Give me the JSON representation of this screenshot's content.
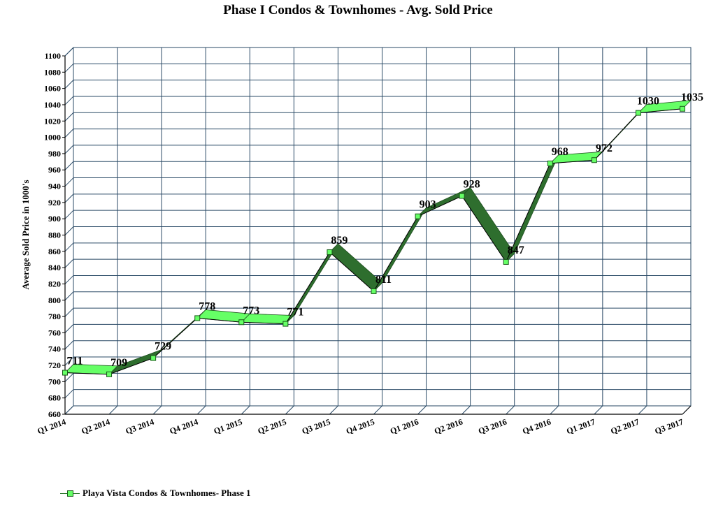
{
  "chart_data": {
    "type": "line",
    "title": "Phase I Condos & Townhomes - Avg. Sold Price",
    "ylabel": "Average Sold Price in 1000's",
    "xlabel": "",
    "categories": [
      "Q1 2014",
      "Q2 2014",
      "Q3 2014",
      "Q4 2014",
      "Q1 2015",
      "Q2 2015",
      "Q3 2015",
      "Q4 2015",
      "Q1 2016",
      "Q2 2016",
      "Q3 2016",
      "Q4 2016",
      "Q1 2017",
      "Q2 2017",
      "Q3 2017"
    ],
    "series": [
      {
        "name": "Playa Vista Condos & Townhomes- Phase 1",
        "values": [
          711,
          709,
          729,
          778,
          773,
          771,
          859,
          811,
          903,
          928,
          847,
          968,
          972,
          1030,
          1035
        ]
      }
    ],
    "data_labels": [
      "711",
      "709",
      "729",
      "778",
      "773",
      "771",
      "859",
      "811",
      "903",
      "928",
      "847",
      "968",
      "972",
      "1030",
      "1035"
    ],
    "ylim": [
      660,
      1100
    ],
    "ytick_step": 20,
    "grid": true,
    "legend_position": "bottom-left",
    "colors": {
      "ribbon_top": "#66ff66",
      "ribbon_side": "#2e6e2e",
      "marker": "#66ff66",
      "grid": "#2a4a66",
      "line": "#000000"
    }
  }
}
